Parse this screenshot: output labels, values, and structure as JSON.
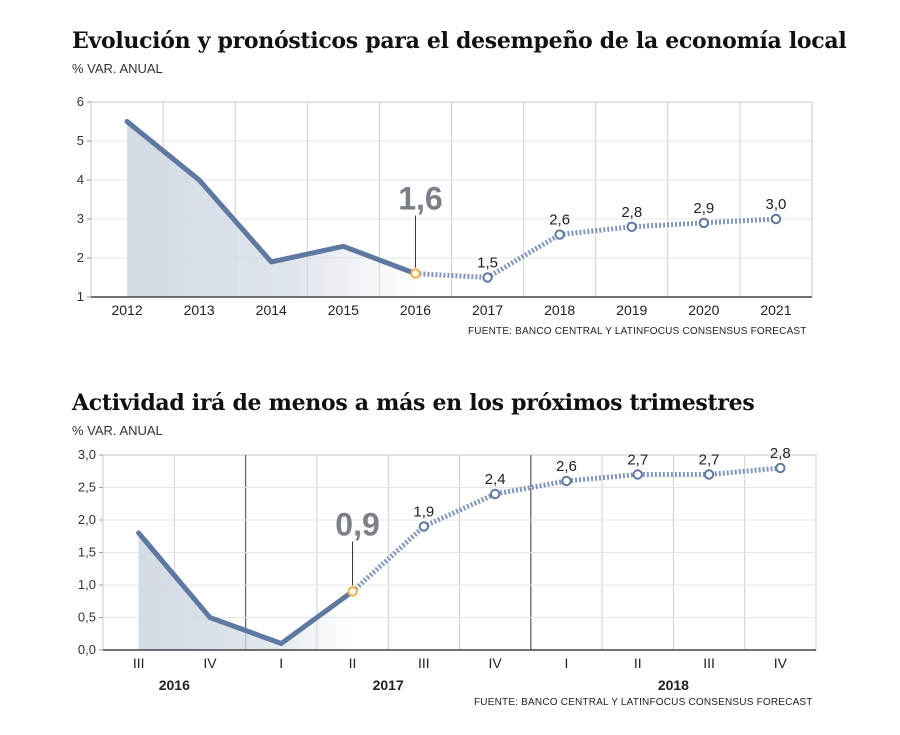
{
  "chart_data": [
    {
      "type": "line",
      "title": "Evolución y pronósticos para el desempeño de la economía local",
      "unit_label": "% VAR. ANUAL",
      "source": "FUENTE: BANCO CENTRAL Y LATINFOCUS CONSENSUS FORECAST",
      "categories": [
        "2012",
        "2013",
        "2014",
        "2015",
        "2016",
        "2017",
        "2018",
        "2019",
        "2020",
        "2021"
      ],
      "series": [
        {
          "values": [
            5.5,
            4.0,
            1.9,
            2.3,
            1.6,
            1.5,
            2.6,
            2.8,
            2.9,
            3.0
          ]
        }
      ],
      "actual_count": 5,
      "highlight_index": 4,
      "data_labels": [
        "",
        "",
        "",
        "",
        "1,6",
        "1,5",
        "2,6",
        "2,8",
        "2,9",
        "3,0"
      ],
      "yticks": [
        "1",
        "2",
        "3",
        "4",
        "5",
        "6"
      ],
      "ylim": [
        1,
        6
      ],
      "colors": {
        "line": "#5f78a0",
        "forecast": "#8097bb",
        "highlight": "#f0b04a",
        "fill": "#d4dbe5"
      }
    },
    {
      "type": "line",
      "title": "Actividad irá de menos a más en los próximos trimestres",
      "unit_label": "% VAR. ANUAL",
      "source": "FUENTE: BANCO CENTRAL Y LATINFOCUS CONSENSUS FORECAST",
      "categories": [
        "III",
        "IV",
        "I",
        "II",
        "III",
        "IV",
        "I",
        "II",
        "III",
        "IV"
      ],
      "year_labels": [
        "2016",
        "2017",
        "2018"
      ],
      "series": [
        {
          "values": [
            1.8,
            0.5,
            0.1,
            0.9,
            1.9,
            2.4,
            2.6,
            2.7,
            2.7,
            2.8
          ]
        }
      ],
      "actual_count": 4,
      "highlight_index": 3,
      "data_labels": [
        "",
        "",
        "",
        "0,9",
        "1,9",
        "2,4",
        "2,6",
        "2,7",
        "2,7",
        "2,8"
      ],
      "yticks": [
        "0,0",
        "0,5",
        "1,0",
        "1,5",
        "2,0",
        "2,5",
        "3,0"
      ],
      "ylim": [
        0,
        3
      ],
      "colors": {
        "line": "#5f78a0",
        "forecast": "#8097bb",
        "highlight": "#f0b04a",
        "fill": "#d4dbe5"
      }
    }
  ]
}
